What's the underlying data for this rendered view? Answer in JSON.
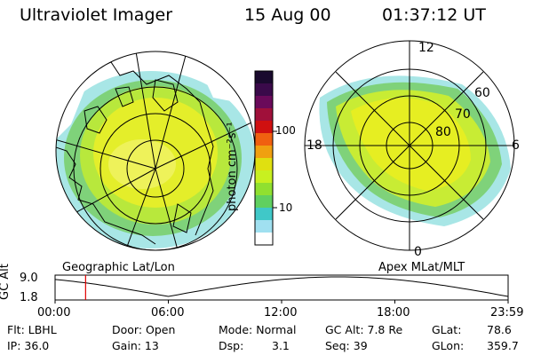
{
  "header": {
    "instrument": "Ultraviolet Imager",
    "date": "15 Aug 00",
    "time": "01:37:12 UT"
  },
  "colorbar": {
    "label": "photon cm⁻²s⁻¹",
    "ticks": [
      "100",
      "10"
    ]
  },
  "left_panel": {
    "caption": "Geographic Lat/Lon"
  },
  "right_panel": {
    "caption": "Apex MLat/MLT",
    "mlt_labels": {
      "top": "12",
      "left": "18",
      "right": "6",
      "bottom": "0"
    },
    "lat_labels": [
      "60",
      "70",
      "80"
    ]
  },
  "altitude_plot": {
    "ylabel": "GC Alt",
    "y_ticks": [
      "9.0",
      "1.8"
    ],
    "x_ticks": [
      "00:00",
      "06:00",
      "12:00",
      "18:00",
      "23:59"
    ],
    "marker_time": "01:37"
  },
  "info": {
    "flt": "Flt: LBHL",
    "ip": "IP: 36.0",
    "door": "Door: Open",
    "gain": "Gain: 13",
    "mode": "Mode: Normal",
    "dsp_label": "Dsp:",
    "dsp_value": "3.1",
    "gc_alt": "GC Alt: 7.8 Re",
    "seq": "Seq: 39",
    "glat_label": "GLat:",
    "glat_value": "78.6",
    "glon_label": "GLon:",
    "glon_value": "359.7"
  },
  "colors": {
    "bar": [
      "#1a0a2e",
      "#3a0a4a",
      "#6a0a5a",
      "#a0103a",
      "#d01010",
      "#f06010",
      "#f0a010",
      "#e0e010",
      "#c8f020",
      "#90e030",
      "#60d060",
      "#40c8c8",
      "#a0e0f0",
      "#ffffff"
    ]
  }
}
